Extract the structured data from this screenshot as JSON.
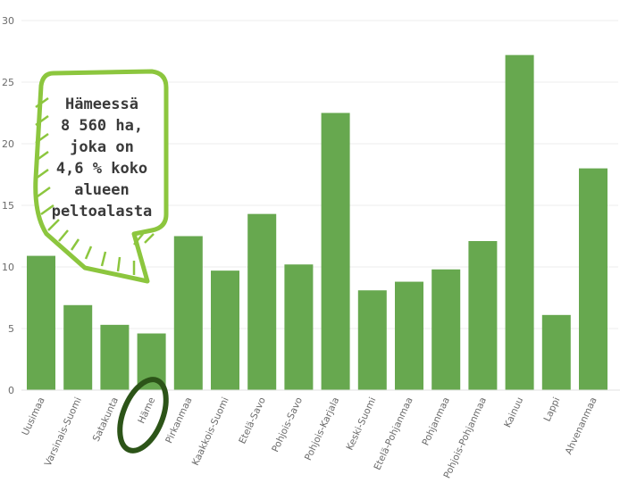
{
  "chart_data": {
    "type": "bar",
    "categories": [
      "Uusimaa",
      "Varsinais-Suomi",
      "Satakunta",
      "Häme",
      "Pirkanmaa",
      "Kaakkois-Suomi",
      "Etelä-Savo",
      "Pohjois-Savo",
      "Pohjois-Karjala",
      "Keski-Suomi",
      "Etelä-Pohjanmaa",
      "Pohjanmaa",
      "Pohjois-Pohjanmaa",
      "Kainuu",
      "Lappi",
      "Ahvenanmaa"
    ],
    "values": [
      10.9,
      6.9,
      5.3,
      4.6,
      12.5,
      9.7,
      14.3,
      10.2,
      22.5,
      8.1,
      8.8,
      9.8,
      12.1,
      27.2,
      6.1,
      18.0
    ],
    "ylim": [
      0,
      30
    ],
    "yticks": [
      0,
      5,
      10,
      15,
      20,
      25,
      30
    ],
    "grid": true,
    "bar_color": "#67a84f",
    "highlight_category": "Häme",
    "highlight_color": "#2c5418",
    "annotation": {
      "lines": [
        "Hämeessä",
        "8 560 ha,",
        "joka on",
        "4,6 % koko",
        "alueen",
        "peltoalasta"
      ],
      "border_color": "#8cc63e"
    }
  }
}
